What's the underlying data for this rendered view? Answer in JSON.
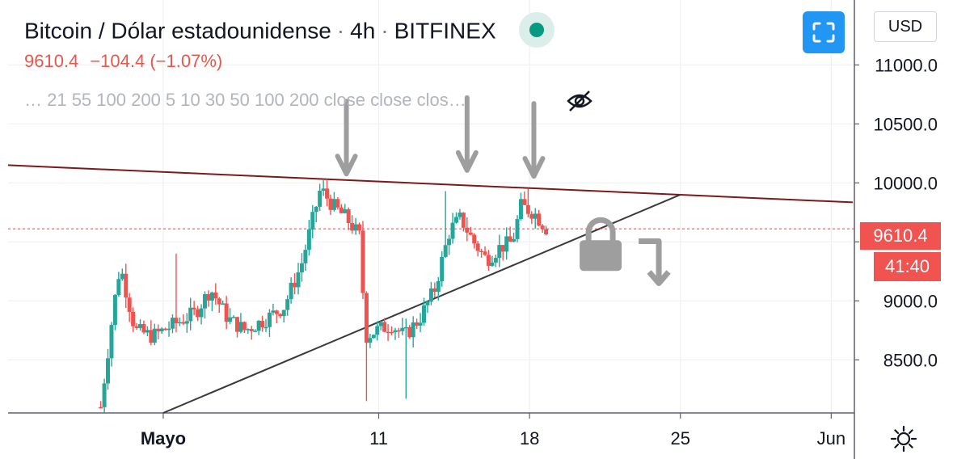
{
  "header": {
    "title": "Bitcoin / Dólar estadounidense",
    "interval": "4h",
    "exchange": "BITFINEX",
    "status_color": "#089981"
  },
  "quote": {
    "last": "9610.4",
    "change": "−104.4",
    "change_pct": "(−1.07%)"
  },
  "indicators_line": "…  21 55 100 200 5 10 30 50 100 200 close close clos…",
  "icons": {
    "visibility": "eye-off-icon",
    "fullscreen": "fullscreen-icon",
    "settings": "gear-icon",
    "lock": "lock-icon",
    "arrow": "down-arrow-icon",
    "turn_arrow": "turn-down-arrow-icon"
  },
  "currency_button": "USD",
  "price_tag": "9610.4",
  "countdown_tag": "41:40",
  "colors": {
    "up": "#26a69a",
    "down": "#ef5350",
    "resistance": "#7b1a1a",
    "support": "#3a3a3a",
    "annotation": "#9e9e9e",
    "accent": "#2196f3"
  },
  "chart_data": {
    "type": "candlestick",
    "symbol": "BTCUSD",
    "interval": "4h",
    "exchange": "BITFINEX",
    "y_ticks": [
      8500.0,
      9000.0,
      9500.0,
      10000.0,
      10500.0,
      11000.0
    ],
    "y_tick_labels": [
      "8500.0",
      "9000.0",
      "9500.0",
      "10000.0",
      "10500.0",
      "11000.0"
    ],
    "ylim": [
      8050,
      11550
    ],
    "x_tick_labels": [
      "Mayo",
      "11",
      "18",
      "25",
      "Jun"
    ],
    "x_ticks_day": [
      1,
      11,
      18,
      25,
      32
    ],
    "xlim_day": [
      -6.2,
      33.0
    ],
    "last_price": 9610.4,
    "series": [
      {
        "name": "BTCUSD",
        "key_points": [
          {
            "day": -1.9,
            "close": 8100
          },
          {
            "day": -1.3,
            "close": 8950
          },
          {
            "day": -1.0,
            "close": 9300
          },
          {
            "day": -0.3,
            "close": 8750
          },
          {
            "day": 0.5,
            "close": 8700
          },
          {
            "day": 1.5,
            "close": 8800
          },
          {
            "day": 2.5,
            "close": 8900
          },
          {
            "day": 3.2,
            "close": 9100
          },
          {
            "day": 4.0,
            "close": 8850
          },
          {
            "day": 4.8,
            "close": 8750
          },
          {
            "day": 5.8,
            "close": 8850
          },
          {
            "day": 6.6,
            "close": 8950
          },
          {
            "day": 7.4,
            "close": 9300
          },
          {
            "day": 8.3,
            "close": 9950
          },
          {
            "day": 8.9,
            "close": 9800
          },
          {
            "day": 9.5,
            "close": 9700
          },
          {
            "day": 10.1,
            "close": 9550
          },
          {
            "day": 10.4,
            "close": 8700
          },
          {
            "day": 10.9,
            "close": 8750
          },
          {
            "day": 11.6,
            "close": 8800
          },
          {
            "day": 12.2,
            "close": 8700
          },
          {
            "day": 12.9,
            "close": 8850
          },
          {
            "day": 13.6,
            "close": 9100
          },
          {
            "day": 14.3,
            "close": 9600
          },
          {
            "day": 14.8,
            "close": 9700
          },
          {
            "day": 15.4,
            "close": 9500
          },
          {
            "day": 16.0,
            "close": 9350
          },
          {
            "day": 16.6,
            "close": 9450
          },
          {
            "day": 17.2,
            "close": 9500
          },
          {
            "day": 17.6,
            "close": 9800
          },
          {
            "day": 18.2,
            "close": 9750
          },
          {
            "day": 18.8,
            "close": 9610.4
          }
        ]
      }
    ],
    "drawings": {
      "resistance_line": {
        "from": {
          "day": -6.2,
          "price": 10150
        },
        "to": {
          "day": 33.0,
          "price": 9835
        }
      },
      "support_line": {
        "from": {
          "day": 1.0,
          "price": 8050
        },
        "to": {
          "day": 25.0,
          "price": 9900
        }
      },
      "down_arrows": [
        {
          "day": 9.5,
          "price": 10350
        },
        {
          "day": 15.1,
          "price": 10380
        },
        {
          "day": 18.2,
          "price": 10330
        }
      ],
      "lock": {
        "day": 21.3,
        "price": 9500
      },
      "turn_arrow": {
        "day": 24.0,
        "price": 9300
      }
    },
    "grid": true,
    "legend": "none"
  }
}
